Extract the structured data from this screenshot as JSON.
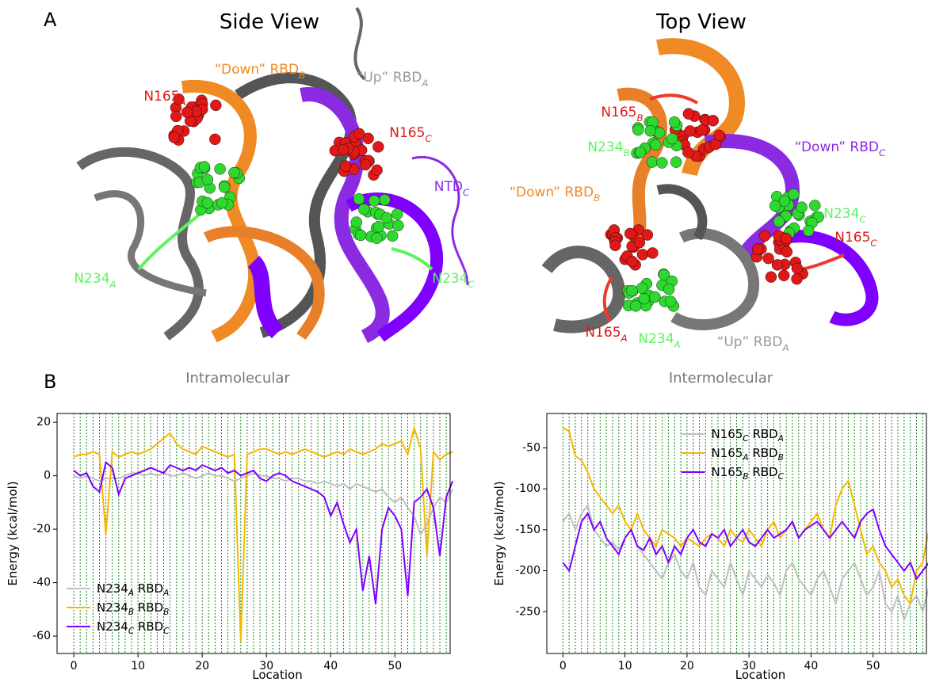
{
  "panels": {
    "a": "A",
    "b": "B"
  },
  "side_view": {
    "title": "Side View",
    "labels": [
      "“Down” RBD_B",
      "“Up” RBD_A",
      "N165_A",
      "N165_C",
      "NTD_C",
      "N234_A",
      "N234_C"
    ]
  },
  "top_view": {
    "title": "Top View",
    "labels": [
      "N165_B",
      "N234_B",
      "“Down” RBD_C",
      "“Down” RBD_B",
      "N234_C",
      "N165_C",
      "N165_A",
      "N234_A",
      "“Up” RBD_A"
    ]
  },
  "chart_data": [
    {
      "type": "line",
      "title": "Intramolecular",
      "xlabel": "Location",
      "ylabel": "Energy (kcal/mol)",
      "xlim": [
        -2.6,
        58.6
      ],
      "ylim": [
        -66.5,
        23.3
      ],
      "xticks": [
        0,
        10,
        20,
        30,
        40,
        50
      ],
      "yticks": [
        -60,
        -40,
        -20,
        0,
        20
      ],
      "legend": "lower left",
      "vlines": {
        "step": 1,
        "color": "#1a8a1a"
      },
      "x": [
        0,
        1,
        2,
        3,
        4,
        5,
        6,
        7,
        8,
        9,
        10,
        11,
        12,
        13,
        14,
        15,
        16,
        17,
        18,
        19,
        20,
        21,
        22,
        23,
        24,
        25,
        26,
        27,
        28,
        29,
        30,
        31,
        32,
        33,
        34,
        35,
        36,
        37,
        38,
        39,
        40,
        41,
        42,
        43,
        44,
        45,
        46,
        47,
        48,
        49,
        50,
        51,
        52,
        53,
        54,
        55,
        56,
        57,
        58,
        59
      ],
      "series": [
        {
          "name": "N234_A RBD_A",
          "color": "#c0c0c0",
          "values": [
            0,
            -1,
            0,
            -1,
            -2,
            -1,
            -1,
            -1,
            0,
            1,
            1,
            0,
            1,
            0,
            1,
            0,
            0,
            1,
            0,
            -1,
            0,
            1,
            0,
            0,
            -1,
            -2,
            -1,
            0,
            1,
            0,
            0,
            -1,
            -1,
            -2,
            -1,
            -1,
            -2,
            -2,
            -3,
            -2,
            -3,
            -4,
            -3,
            -5,
            -3,
            -4,
            -5,
            -6,
            -5,
            -8,
            -10,
            -8,
            -12,
            -15,
            -22,
            -18,
            -12,
            -8,
            -10,
            -5
          ]
        },
        {
          "name": "N234_B RBD_B",
          "color": "#f5b800",
          "values": [
            7,
            8,
            8,
            9,
            8,
            -22,
            9,
            7,
            8,
            9,
            8,
            9,
            10,
            12,
            14,
            16,
            12,
            10,
            9,
            8,
            11,
            10,
            9,
            8,
            7,
            8,
            -62,
            8,
            9,
            10,
            10,
            9,
            8,
            9,
            8,
            9,
            10,
            9,
            8,
            7,
            8,
            9,
            8,
            10,
            9,
            8,
            9,
            10,
            12,
            11,
            12,
            13,
            8,
            18,
            10,
            -30,
            9,
            6,
            8,
            9
          ]
        },
        {
          "name": "N234_C RBD_C",
          "color": "#7f00ff",
          "values": [
            2,
            0,
            1,
            -4,
            -6,
            5,
            3,
            -7,
            -1,
            0,
            1,
            2,
            3,
            2,
            1,
            4,
            3,
            2,
            3,
            2,
            4,
            3,
            2,
            3,
            1,
            2,
            0,
            1,
            2,
            -1,
            -2,
            0,
            1,
            0,
            -2,
            -3,
            -4,
            -5,
            -6,
            -8,
            -15,
            -10,
            -18,
            -25,
            -20,
            -43,
            -30,
            -48,
            -20,
            -12,
            -15,
            -20,
            -45,
            -10,
            -8,
            -5,
            -12,
            -30,
            -8,
            -2
          ]
        }
      ]
    },
    {
      "type": "line",
      "title": "Intermolecular",
      "xlabel": "Location",
      "ylabel": "Energy (kcal/mol)",
      "xlim": [
        -2.6,
        58.6
      ],
      "ylim": [
        -301,
        -8
      ],
      "xticks": [
        0,
        10,
        20,
        30,
        40,
        50
      ],
      "yticks": [
        -250,
        -200,
        -150,
        -100,
        -50
      ],
      "legend": "upper center",
      "vlines": {
        "step": 1,
        "color": "#1a8a1a"
      },
      "x": [
        0,
        1,
        2,
        3,
        4,
        5,
        6,
        7,
        8,
        9,
        10,
        11,
        12,
        13,
        14,
        15,
        16,
        17,
        18,
        19,
        20,
        21,
        22,
        23,
        24,
        25,
        26,
        27,
        28,
        29,
        30,
        31,
        32,
        33,
        34,
        35,
        36,
        37,
        38,
        39,
        40,
        41,
        42,
        43,
        44,
        45,
        46,
        47,
        48,
        49,
        50,
        51,
        52,
        53,
        54,
        55,
        56,
        57,
        58,
        59
      ],
      "series": [
        {
          "name": "N165_C RBD_A",
          "color": "#c0c0c0",
          "values": [
            -140,
            -130,
            -150,
            -130,
            -120,
            -150,
            -160,
            -170,
            -165,
            -175,
            -160,
            -150,
            -170,
            -180,
            -190,
            -200,
            -210,
            -190,
            -180,
            -200,
            -210,
            -190,
            -220,
            -230,
            -200,
            -210,
            -220,
            -190,
            -210,
            -230,
            -200,
            -210,
            -220,
            -205,
            -215,
            -230,
            -200,
            -190,
            -210,
            -220,
            -230,
            -210,
            -200,
            -220,
            -240,
            -210,
            -200,
            -190,
            -210,
            -230,
            -220,
            -200,
            -240,
            -250,
            -230,
            -260,
            -240,
            -230,
            -250,
            -220
          ]
        },
        {
          "name": "N165_A RBD_B",
          "color": "#f5b800",
          "values": [
            -25,
            -30,
            -60,
            -65,
            -80,
            -100,
            -110,
            -120,
            -130,
            -120,
            -140,
            -150,
            -130,
            -150,
            -160,
            -170,
            -150,
            -155,
            -160,
            -170,
            -160,
            -165,
            -170,
            -160,
            -155,
            -160,
            -170,
            -150,
            -160,
            -165,
            -150,
            -160,
            -170,
            -150,
            -140,
            -160,
            -150,
            -140,
            -160,
            -150,
            -140,
            -130,
            -150,
            -160,
            -120,
            -100,
            -90,
            -120,
            -150,
            -180,
            -170,
            -190,
            -200,
            -220,
            -210,
            -230,
            -240,
            -200,
            -190,
            -150
          ]
        },
        {
          "name": "N165_B RBD_C",
          "color": "#7f00ff",
          "values": [
            -190,
            -200,
            -170,
            -140,
            -130,
            -150,
            -140,
            -160,
            -170,
            -180,
            -160,
            -150,
            -170,
            -175,
            -160,
            -180,
            -170,
            -190,
            -170,
            -180,
            -160,
            -150,
            -165,
            -170,
            -155,
            -160,
            -150,
            -170,
            -160,
            -150,
            -165,
            -170,
            -160,
            -150,
            -160,
            -155,
            -150,
            -140,
            -160,
            -150,
            -145,
            -140,
            -150,
            -160,
            -150,
            -140,
            -150,
            -160,
            -140,
            -130,
            -125,
            -150,
            -170,
            -180,
            -190,
            -200,
            -190,
            -210,
            -200,
            -190
          ]
        }
      ]
    }
  ]
}
